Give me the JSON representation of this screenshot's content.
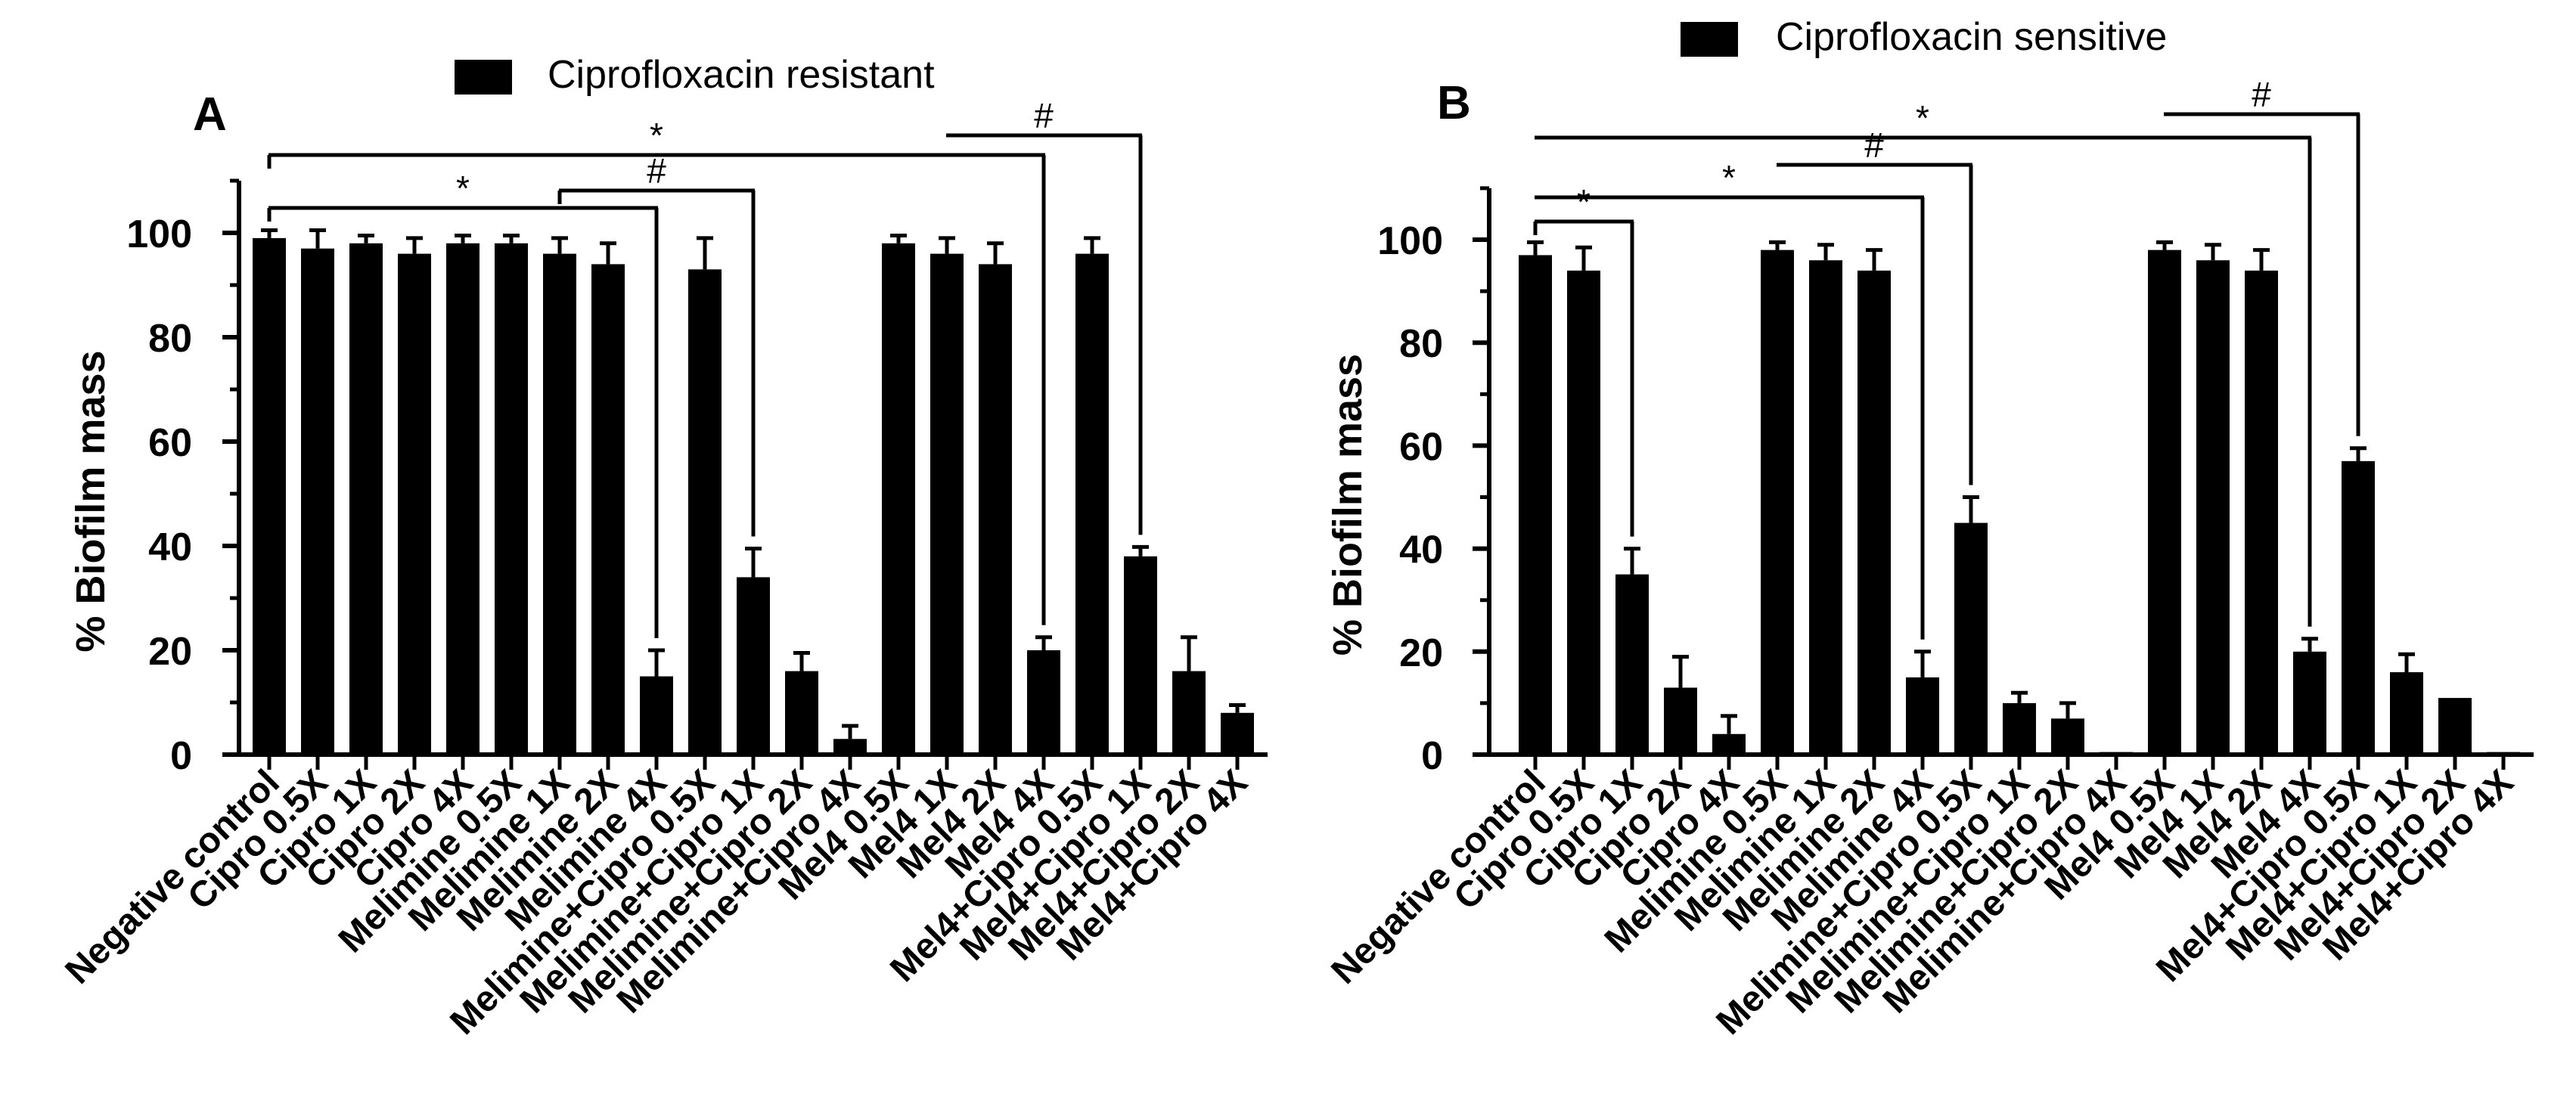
{
  "chart_data": [
    {
      "type": "bar",
      "panel_label": "A",
      "legend": "Ciprofloxacin resistant",
      "ylabel": "% Biofilm mass",
      "xlabel": "",
      "ylim": [
        0,
        110
      ],
      "yticks": [
        "0",
        "20",
        "40",
        "60",
        "80",
        "100"
      ],
      "categories": [
        "Negative control",
        "Cipro 0.5X",
        "Cipro 1X",
        "Cipro 2X",
        "Cipro 4X",
        "Melimine 0.5X",
        "Melimine 1X",
        "Melimine 2X",
        "Melimine 4X",
        "Melimine+Cipro 0.5X",
        "Melimine+Cipro 1X",
        "Melimine+Cipro 2X",
        "Melimine+Cipro 4X",
        "Mel4 0.5X",
        "Mel4 1X",
        "Mel4 2X",
        "Mel4 4X",
        "Mel4+Cipro 0.5X",
        "Mel4+Cipro 1X",
        "Mel4+Cipro 2X",
        "Mel4+Cipro 4X"
      ],
      "values": [
        99,
        97,
        98,
        96,
        98,
        98,
        96,
        94,
        15,
        93,
        34,
        16,
        3,
        98,
        96,
        94,
        20,
        96,
        38,
        16,
        8
      ],
      "errors": [
        1.5,
        3.5,
        1.5,
        3,
        1.5,
        1.5,
        3,
        4,
        5,
        6,
        5.5,
        3.5,
        2.5,
        1.5,
        3,
        4,
        2.5,
        3,
        1.8,
        6.5,
        1.5
      ],
      "significance": [
        {
          "from": 0,
          "to": 8,
          "symbol": "*"
        },
        {
          "from": 6,
          "to": 10,
          "symbol": "#"
        },
        {
          "from": 0,
          "to": 16,
          "symbol": "*"
        },
        {
          "from": 14,
          "to": 18,
          "symbol": "#"
        }
      ]
    },
    {
      "type": "bar",
      "panel_label": "B",
      "legend": "Ciprofloxacin sensitive",
      "ylabel": "% Biofilm mass",
      "xlabel": "",
      "ylim": [
        0,
        110
      ],
      "yticks": [
        "0",
        "20",
        "40",
        "60",
        "80",
        "100"
      ],
      "categories": [
        "Negative control",
        "Cipro 0.5X",
        "Cipro 1X",
        "Cipro 2X",
        "Cipro 4X",
        "Melimine 0.5X",
        "Melimine 1X",
        "Melimine 2X",
        "Melimine 4X",
        "Melimine+Cipro 0.5X",
        "Melimine+Cipro 1X",
        "Melimine+Cipro 2X",
        "Melimine+Cipro 4X",
        "Mel4 0.5X",
        "Mel4 1X",
        "Mel4 2X",
        "Mel4 4X",
        "Mel4+Cipro 0.5X",
        "Mel4+Cipro 1X",
        "Mel4+Cipro 2X",
        "Mel4+Cipro 4X"
      ],
      "values": [
        97,
        94,
        35,
        13,
        4,
        98,
        96,
        94,
        15,
        45,
        10,
        7,
        0.5,
        98,
        96,
        94,
        20,
        57,
        16,
        11,
        0.5
      ],
      "errors": [
        2.5,
        4.5,
        5,
        6,
        3.5,
        1.5,
        3,
        4,
        5,
        5,
        2,
        3,
        0,
        1.5,
        3,
        4,
        2.5,
        2.5,
        3.5,
        0,
        0
      ],
      "significance": [
        {
          "from": 0,
          "to": 2,
          "symbol": "*"
        },
        {
          "from": 0,
          "to": 8,
          "symbol": "*"
        },
        {
          "from": 5,
          "to": 9,
          "symbol": "#"
        },
        {
          "from": 0,
          "to": 16,
          "symbol": "*"
        },
        {
          "from": 13,
          "to": 17,
          "symbol": "#"
        }
      ]
    }
  ]
}
